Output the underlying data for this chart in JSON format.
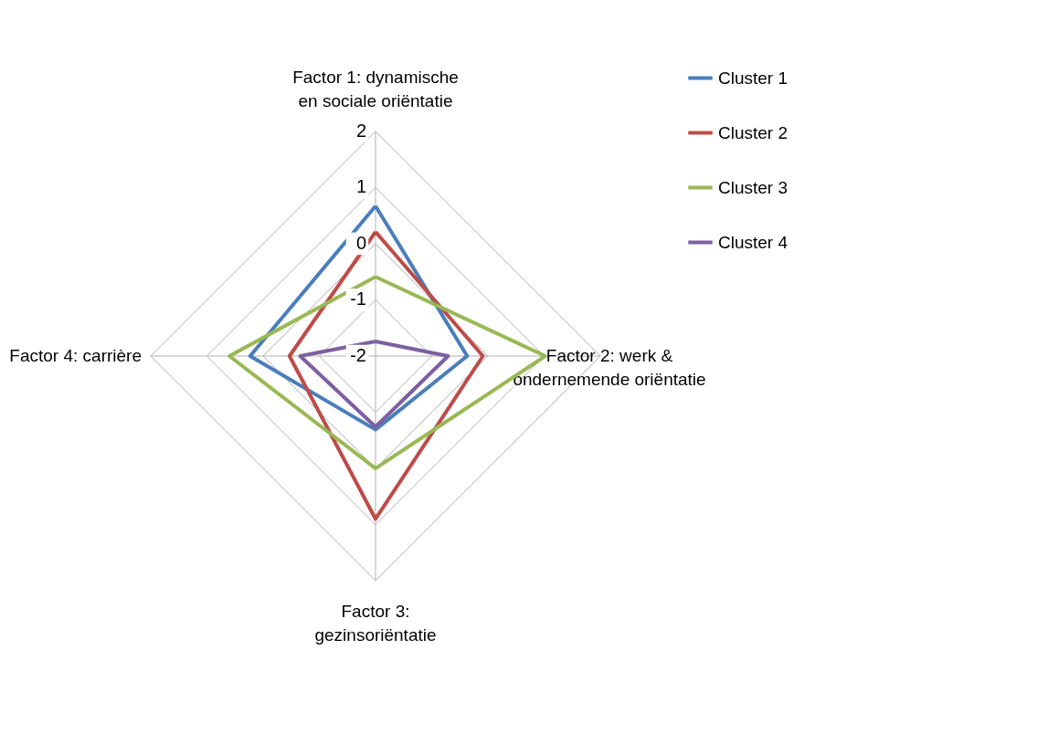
{
  "chart_data": {
    "type": "radar",
    "categories": [
      "Factor 1: dynamische en sociale oriëntatie",
      "Factor 2: werk & ondernemende oriëntatie",
      "Factor 3: gezinsoriëntatie",
      "Factor 4: carrière"
    ],
    "series": [
      {
        "name": "Cluster 1",
        "color": "#4a7ebb",
        "values": [
          0.67,
          -0.37,
          -0.69,
          0.23
        ]
      },
      {
        "name": "Cluster 2",
        "color": "#be4b48",
        "values": [
          0.21,
          -0.09,
          0.9,
          -0.47
        ]
      },
      {
        "name": "Cluster 3",
        "color": "#98b954",
        "values": [
          -0.59,
          1.02,
          0.0,
          0.6
        ]
      },
      {
        "name": "Cluster 4",
        "color": "#7d60a0",
        "values": [
          -1.74,
          -0.71,
          -0.74,
          -0.66
        ]
      }
    ],
    "ylim": [
      -2,
      2
    ],
    "yticks": [
      -2,
      -1,
      0,
      1,
      2
    ],
    "grid": true,
    "legend": "right",
    "marker": "none"
  }
}
